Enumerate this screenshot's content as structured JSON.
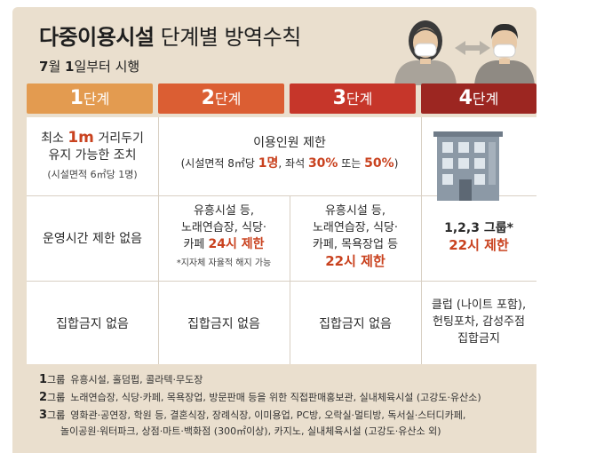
{
  "header": {
    "title_bold": "다중이용시설",
    "title_rest": " 단계별 방역수칙",
    "subtitle_bold1": "7",
    "subtitle_mid1": "월 ",
    "subtitle_bold2": "1",
    "subtitle_mid2": "일부터 시행"
  },
  "stages": [
    {
      "num": "1",
      "label": "단계"
    },
    {
      "num": "2",
      "label": "단계"
    },
    {
      "num": "3",
      "label": "단계"
    },
    {
      "num": "4",
      "label": "단계"
    }
  ],
  "row1": {
    "s1_line1_a": "최소 ",
    "s1_line1_b": "1m",
    "s1_line1_c": " 거리두기",
    "s1_line2": "유지 가능한 조치",
    "s1_line3": "(시설면적 6㎡당 1명)",
    "merged_line1": "이용인원 제한",
    "merged_a": "(시설면적 8㎡당 ",
    "merged_b": "1명",
    "merged_c": ", 좌석 ",
    "merged_d": "30%",
    "merged_e": " 또는 ",
    "merged_f": "50%",
    "merged_g": ")"
  },
  "row2": {
    "s1": "운영시간 제한 없음",
    "s2_line1": "유흥시설 등,",
    "s2_line2": "노래연습장, 식당·",
    "s2_line3a": "카페 ",
    "s2_line3b": "24시 제한",
    "s2_note": "*지자체 자율적 해지 가능",
    "s3_line1": "유흥시설 등,",
    "s3_line2": "노래연습장, 식당·",
    "s3_line3": "카페, 목욕장업 등",
    "s3_line4": "22시 제한",
    "s4_line1": "1,2,3 그룹*",
    "s4_line2": "22시 제한"
  },
  "row3": {
    "s1": "집합금지 없음",
    "s2": "집합금지 없음",
    "s3": "집합금지 없음",
    "s4_line1": "클럽 (나이트 포함),",
    "s4_line2": "헌팅포차, 감성주점",
    "s4_line3": "집합금지"
  },
  "legend": [
    {
      "num": "1",
      "unit": "그룹",
      "text": "유흥시설, 홀덤펍, 콜라텍·무도장"
    },
    {
      "num": "2",
      "unit": "그룹",
      "text": "노래연습장, 식당·카페, 목욕장업, 방문판매 등을 위한 직접판매홍보관, 실내체육시설 (고강도·유산소)"
    },
    {
      "num": "3",
      "unit": "그룹",
      "text": "영화관·공연장, 학원 등, 결혼식장, 장례식장, 이미용업, PC방, 오락실·멀티방, 독서실·스터디카페,",
      "text2": "놀이공원·워터파크, 상점·마트·백화점 (300㎡이상), 카지노, 실내체육시설 (고강도·유산소 외)"
    }
  ],
  "colors": {
    "stage1": "#e39b50",
    "stage2": "#db5e33",
    "stage3": "#c6362a",
    "stage4": "#9c2621",
    "accent": "#c9421f",
    "background": "#eadfce"
  },
  "icons": {
    "people": "masked-people-icon",
    "building": "building-icon"
  }
}
